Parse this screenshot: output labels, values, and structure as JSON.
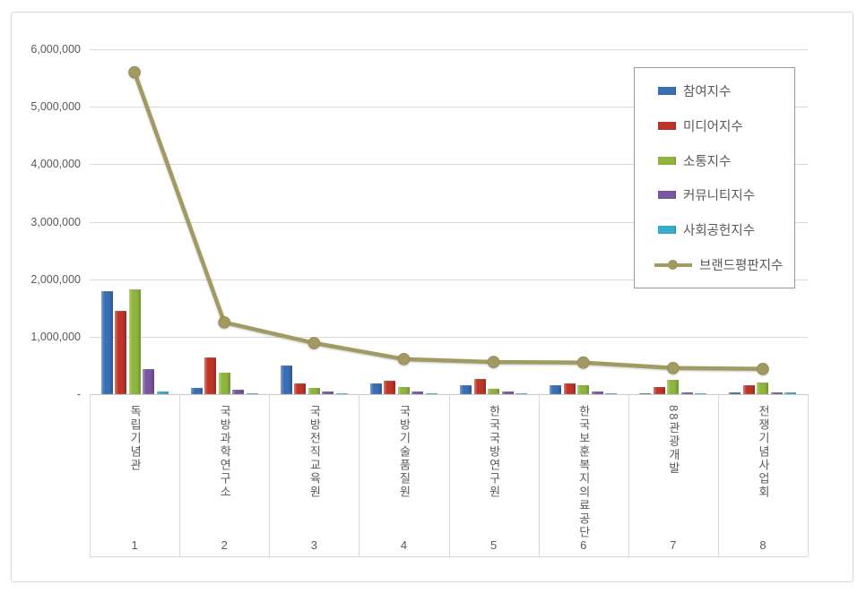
{
  "chart_data": {
    "type": "bar",
    "title": "",
    "categories": [
      "독립기념관",
      "국방과학연구소",
      "국방전직교육원",
      "국방기술품질원",
      "한국국방연구원",
      "한국보훈복지의료공단",
      "88관광개발",
      "전쟁기념사업회"
    ],
    "category_numbers": [
      "1",
      "2",
      "3",
      "4",
      "5",
      "6",
      "7",
      "8"
    ],
    "series": [
      {
        "name": "참여지수",
        "type": "bar",
        "color": "#3a6eb5",
        "values": [
          1800000,
          110000,
          500000,
          190000,
          150000,
          160000,
          20000,
          30000
        ]
      },
      {
        "name": "미디어지수",
        "type": "bar",
        "color": "#be3428",
        "values": [
          1450000,
          640000,
          190000,
          230000,
          260000,
          180000,
          120000,
          160000
        ]
      },
      {
        "name": "소통지수",
        "type": "bar",
        "color": "#8eb63c",
        "values": [
          1820000,
          380000,
          110000,
          120000,
          90000,
          160000,
          250000,
          210000
        ]
      },
      {
        "name": "커뮤니티지수",
        "type": "bar",
        "color": "#7a56a3",
        "values": [
          430000,
          80000,
          45000,
          40000,
          40000,
          45000,
          35000,
          25000
        ]
      },
      {
        "name": "사회공헌지수",
        "type": "bar",
        "color": "#35aecb",
        "values": [
          50000,
          20000,
          15000,
          15000,
          15000,
          20000,
          15000,
          25000
        ]
      },
      {
        "name": "브랜드평판지수",
        "type": "line",
        "color": "#a29a62",
        "values": [
          5600000,
          1250000,
          890000,
          610000,
          560000,
          550000,
          455000,
          440000
        ]
      }
    ],
    "y_axis": {
      "min": 0,
      "max": 6000000,
      "step": 1000000,
      "tick_labels": [
        "-",
        "1,000,000",
        "2,000,000",
        "3,000,000",
        "4,000,000",
        "5,000,000",
        "6,000,000"
      ]
    },
    "grid": true,
    "legend_position": "inside-top-right"
  }
}
